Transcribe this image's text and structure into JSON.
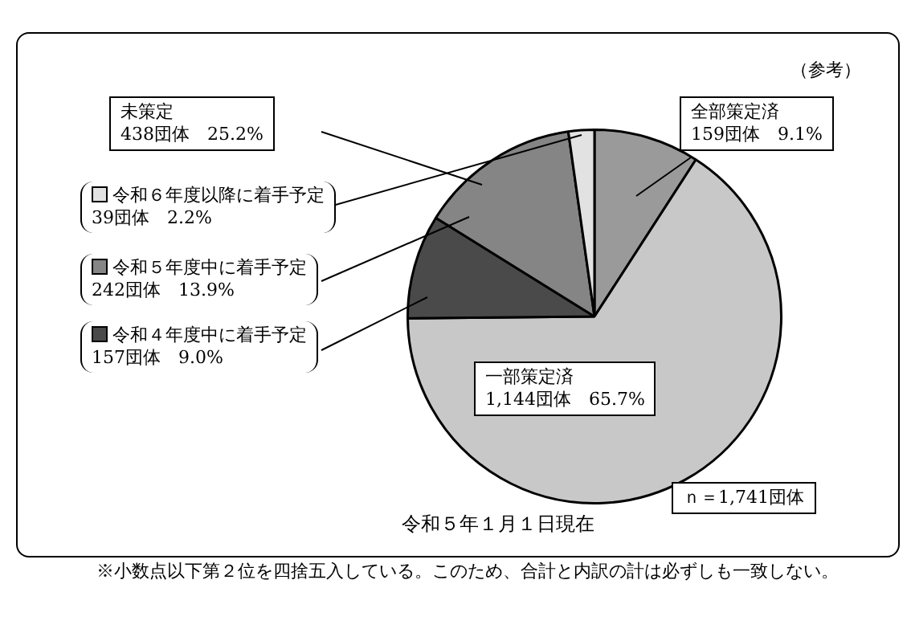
{
  "chart_data": {
    "type": "pie",
    "subtitle": "令和５年１月１日現在",
    "categories": [
      "全部策定済",
      "一部策定済",
      "令和４年度中に着手予定",
      "令和５年度中に着手予定",
      "令和６年度以降に着手予定"
    ],
    "values": [
      159,
      1144,
      157,
      242,
      39
    ],
    "value_labels": [
      "159団体　9.1%",
      "1,144団体　65.7%",
      "157団体　9.0%",
      "242団体　13.9%",
      "39団体　2.2%"
    ],
    "colors": [
      "#9a9a9a",
      "#c8c8c8",
      "#4a4a4a",
      "#858585",
      "#e2e2e2"
    ],
    "annotations": [
      "未策定",
      "438団体　25.2%",
      "ｎ＝1,741団体",
      "（参考）",
      "※小数点以下第２位を四捨五入している。このため、合計と内訳の計は必ずしも一致しない。"
    ],
    "legend": "left"
  }
}
